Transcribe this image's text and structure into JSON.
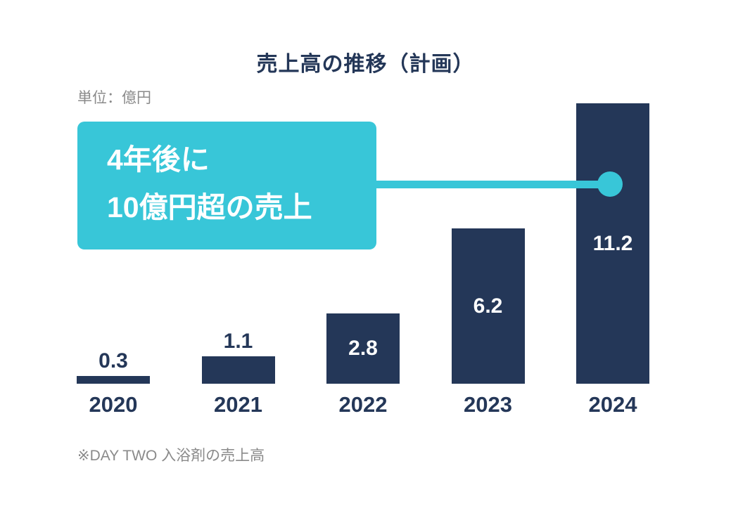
{
  "title": "売上高の推移（計画）",
  "unit_label": "単位：億円",
  "callout": {
    "line1": "4年後に",
    "line2": "10億円超の売上"
  },
  "footnote": "※DAY TWO 入浴剤の売上高",
  "colors": {
    "navy": "#243758",
    "teal": "#38C6D8",
    "gray": "#8A8A8A",
    "background": "#FFFFFF",
    "inside_label_text": "#FFFFFF"
  },
  "chart_data": {
    "type": "bar",
    "categories": [
      "2020",
      "2021",
      "2022",
      "2023",
      "2024"
    ],
    "values": [
      0.3,
      1.1,
      2.8,
      6.2,
      11.2
    ],
    "value_labels": [
      "0.3",
      "1.1",
      "2.8",
      "6.2",
      "11.2"
    ],
    "label_positions": [
      "above",
      "above",
      "inside",
      "inside",
      "inside"
    ],
    "title": "売上高の推移（計画）",
    "xlabel": "",
    "ylabel": "億円",
    "ylim": [
      0,
      11.2
    ],
    "grid": false,
    "legend": "none",
    "bar_color": "#243758",
    "annotation": {
      "text": "4年後に10億円超の売上",
      "target_category": "2024",
      "target_value": 11.2,
      "connector": "line-with-dot"
    }
  }
}
